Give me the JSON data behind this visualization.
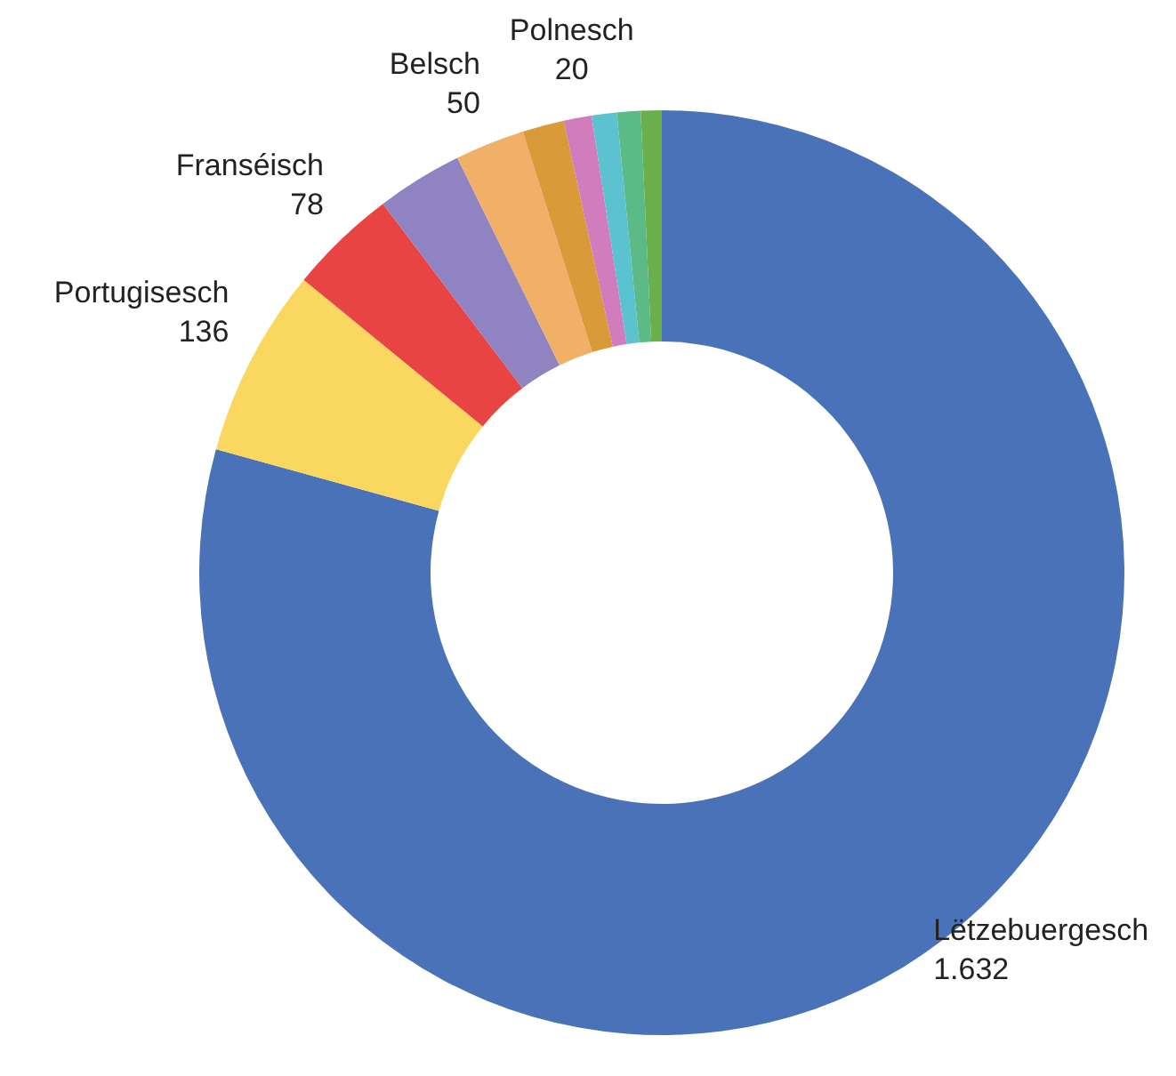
{
  "chart_data": {
    "type": "donut",
    "categories": [
      "Lëtzebuergesch",
      "Portugisesch",
      "Franséisch",
      null,
      "Belsch",
      null,
      "Polnesch",
      null,
      null,
      null
    ],
    "values": [
      1632,
      136,
      78,
      62,
      50,
      30,
      20,
      18,
      17,
      15
    ],
    "colors": [
      "#4a72b8",
      "#fad85f",
      "#e84444",
      "#8f84c1",
      "#f0b068",
      "#d99a3a",
      "#d17cbc",
      "#5bc3cf",
      "#5cba87",
      "#6aaf4c"
    ],
    "value_labels": [
      "1.632",
      "136",
      "78",
      null,
      "50",
      null,
      "20",
      null,
      null,
      null
    ]
  }
}
